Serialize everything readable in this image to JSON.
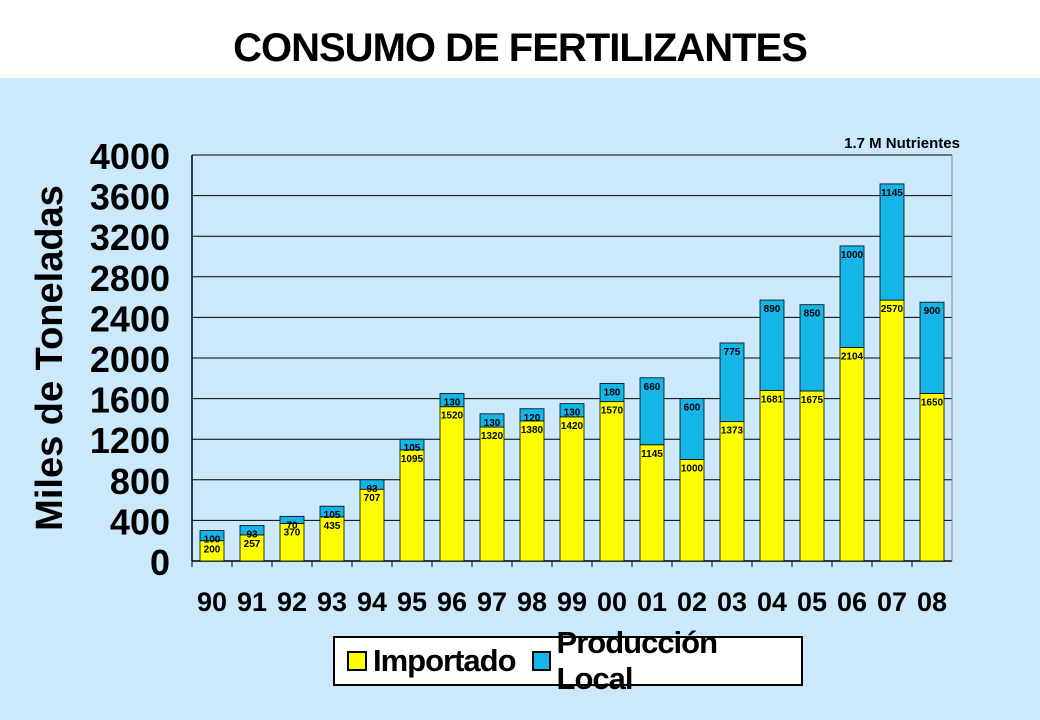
{
  "title": "CONSUMO DE FERTILIZANTES",
  "annotation": "1.7 M Nutrientes",
  "colors": {
    "importado": "#ffff00",
    "produccion_local": "#16b5e8",
    "background": "#cce9fb",
    "grid": "#000000"
  },
  "chart_data": {
    "type": "bar",
    "stacked": true,
    "title": "CONSUMO DE FERTILIZANTES",
    "xlabel": "",
    "ylabel": "Miles de Toneladas",
    "ylim": [
      0,
      4000
    ],
    "yticks": [
      0,
      400,
      800,
      1200,
      1600,
      2000,
      2400,
      2800,
      3200,
      3600,
      4000
    ],
    "grid": true,
    "legend_position": "bottom",
    "categories": [
      "90",
      "91",
      "92",
      "93",
      "94",
      "95",
      "96",
      "97",
      "98",
      "99",
      "00",
      "01",
      "02",
      "03",
      "04",
      "05",
      "06",
      "07",
      "08"
    ],
    "series": [
      {
        "name": "Importado",
        "values": [
          200,
          257,
          370,
          435,
          707,
          1095,
          1520,
          1320,
          1380,
          1420,
          1570,
          1145,
          1000,
          1373,
          1681,
          1675,
          2104,
          2570,
          1650
        ]
      },
      {
        "name": "Producción Local",
        "values": [
          100,
          93,
          70,
          105,
          93,
          105,
          130,
          130,
          120,
          130,
          180,
          660,
          600,
          775,
          890,
          850,
          1000,
          1145,
          900
        ]
      }
    ]
  }
}
